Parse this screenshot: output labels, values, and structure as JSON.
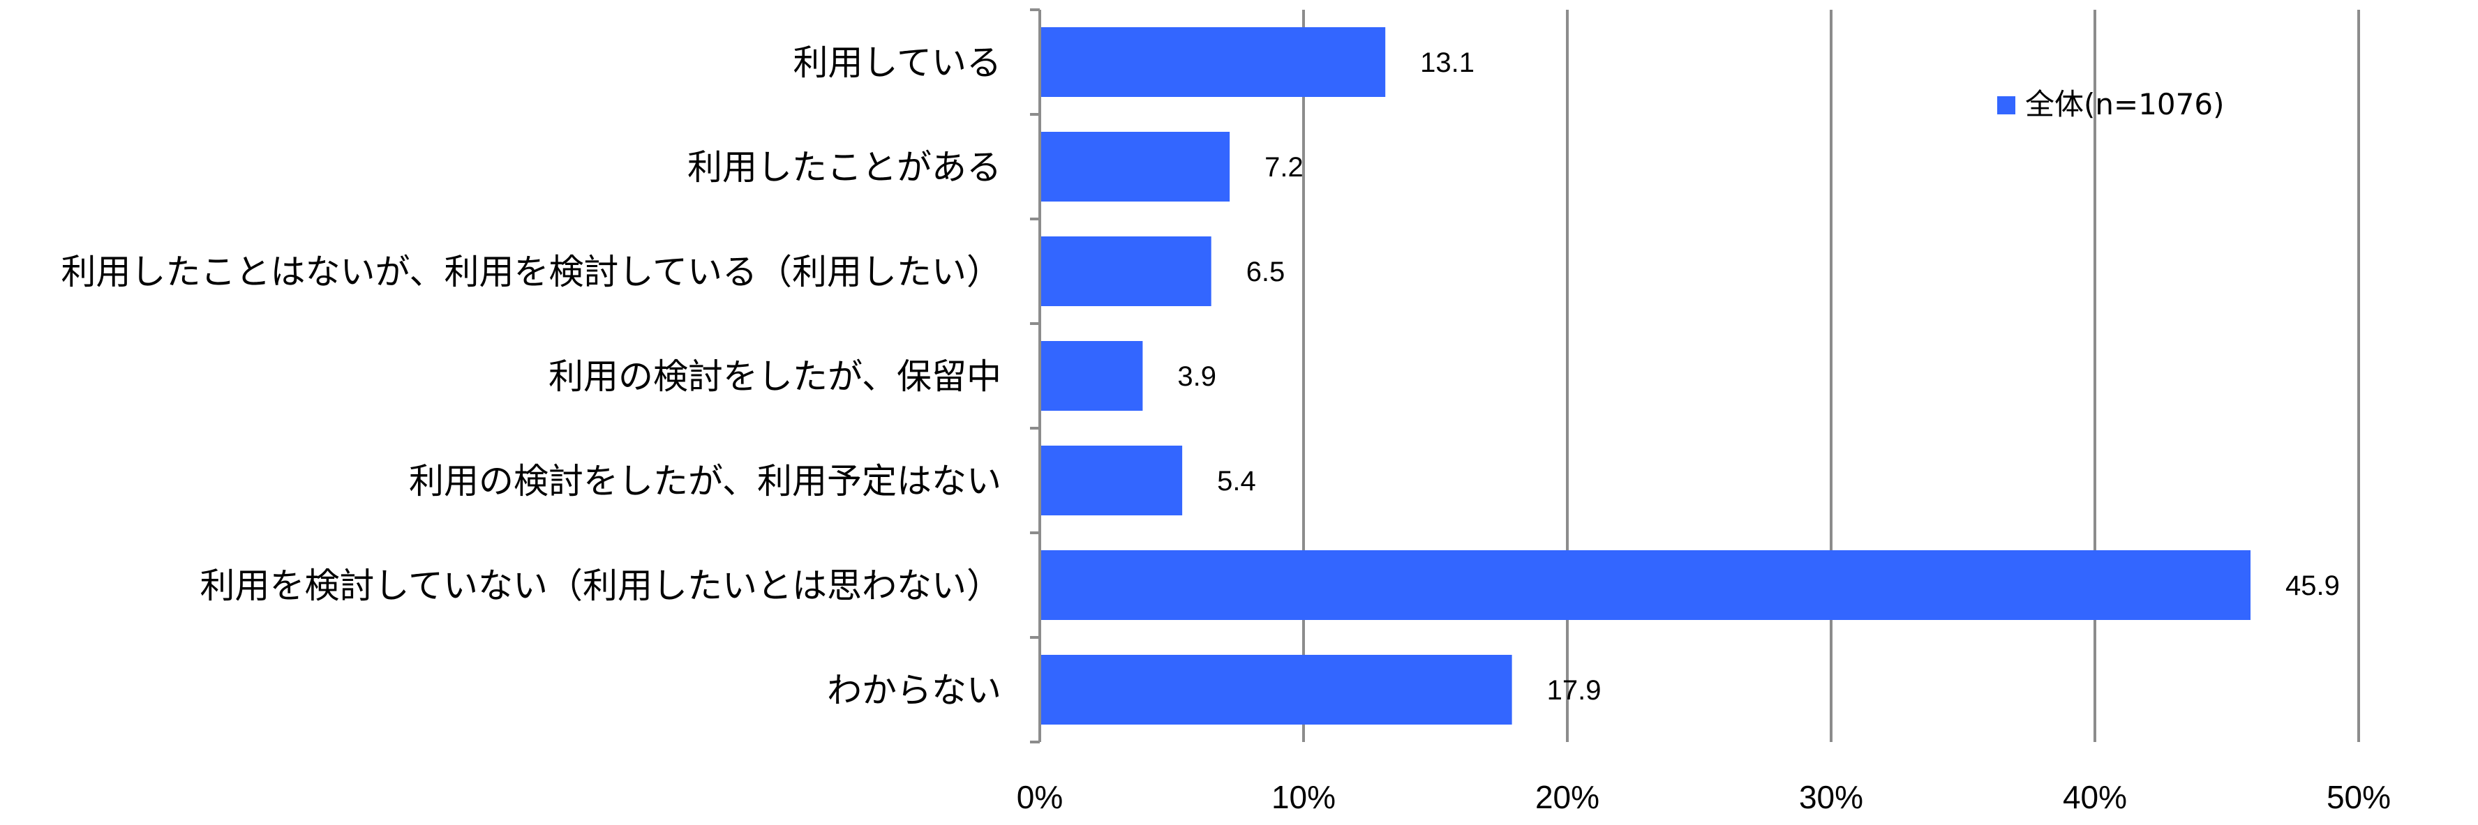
{
  "chart_data": {
    "type": "bar",
    "orientation": "horizontal",
    "categories": [
      "利用している",
      "利用したことがある",
      "利用したことはないが、利用を検討している（利用したい）",
      "利用の検討をしたが、保留中",
      "利用の検討をしたが、利用予定はない",
      "利用を検討していない（利用したいとは思わない）",
      "わからない"
    ],
    "series": [
      {
        "name": "全体(n=1076)",
        "values": [
          13.1,
          7.2,
          6.5,
          3.9,
          5.4,
          45.9,
          17.9
        ],
        "value_labels": [
          "13.1",
          "7.2",
          "6.5",
          "3.9",
          "5.4",
          "45.9",
          "17.9"
        ],
        "color": "#3366ff"
      }
    ],
    "xlim": [
      0,
      50
    ],
    "xticks": [
      0,
      10,
      20,
      30,
      40,
      50
    ],
    "xtick_labels": [
      "0%",
      "10%",
      "20%",
      "30%",
      "40%",
      "50%"
    ],
    "title": "",
    "xlabel": "",
    "ylabel": "",
    "grid": "vertical",
    "legend": "top-right",
    "gridline_color": "#8c8c8c",
    "axis_color": "#8c8c8c"
  }
}
